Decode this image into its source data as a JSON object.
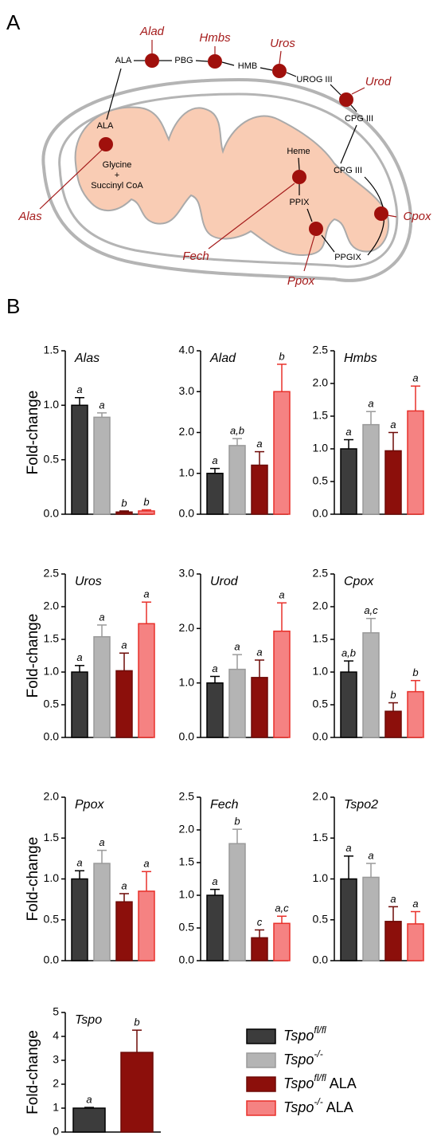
{
  "diagram": {
    "panel": "A",
    "genes": [
      "Alad",
      "Hmbs",
      "Uros",
      "Urod",
      "Alas",
      "Fech",
      "Ppox",
      "Cpox"
    ],
    "metabolites": [
      "ALA",
      "PBG",
      "HMB",
      "UROG III",
      "CPG III",
      "ALA",
      "Glycine",
      "+",
      "Succinyl CoA",
      "Heme",
      "PPIX",
      "CPG III",
      "PPGIX"
    ]
  },
  "panel_b": "B",
  "legend": [
    {
      "name": "Tspo",
      "superscript": "fl/fl",
      "color": "#3c3c3c",
      "edge": "#000000"
    },
    {
      "name": "Tspo",
      "superscript": "-/-",
      "color": "#b4b4b4",
      "edge": "#9a9a9a"
    },
    {
      "name": "Tspo",
      "superscript": "fl/fl",
      "suffix": "ALA",
      "color": "#8c0f0b",
      "edge": "#6e0a07"
    },
    {
      "name": "Tspo",
      "superscript": "-/-",
      "suffix": "ALA",
      "color": "#f58282",
      "edge": "#e8302a"
    }
  ],
  "chart_data": [
    {
      "type": "bar",
      "title": "Alas",
      "ylabel": "Fold-change",
      "values": [
        1.0,
        0.89,
        0.02,
        0.03
      ],
      "errors": [
        0.07,
        0.04,
        0.01,
        0.01
      ],
      "letters": [
        "a",
        "a",
        "b",
        "b"
      ],
      "colors": [
        "#3c3c3c",
        "#b4b4b4",
        "#8c0f0b",
        "#f58282"
      ],
      "edges": [
        "#000000",
        "#9a9a9a",
        "#6e0a07",
        "#e8302a"
      ],
      "ylim": [
        0,
        1.5
      ],
      "yticks": [
        {
          "value": 0,
          "label": "0.0"
        },
        0.5,
        {
          "value": 1,
          "label": "1.0"
        },
        1.5
      ]
    },
    {
      "type": "bar",
      "title": "Alad",
      "values": [
        1.0,
        1.68,
        1.2,
        3.0
      ],
      "errors": [
        0.12,
        0.17,
        0.33,
        0.67
      ],
      "letters": [
        "a",
        "a,b",
        "a",
        "b"
      ],
      "colors": [
        "#3c3c3c",
        "#b4b4b4",
        "#8c0f0b",
        "#f58282"
      ],
      "edges": [
        "#000000",
        "#9a9a9a",
        "#6e0a07",
        "#e8302a"
      ],
      "ylim": [
        0,
        4
      ],
      "yticks": [
        {
          "value": 0,
          "label": "0.0"
        },
        {
          "value": 1,
          "label": "1.0"
        },
        {
          "value": 2,
          "label": "2.0"
        },
        {
          "value": 3,
          "label": "3.0"
        },
        {
          "value": 4,
          "label": "4.0"
        }
      ]
    },
    {
      "type": "bar",
      "title": "Hmbs",
      "values": [
        1.0,
        1.37,
        0.97,
        1.58
      ],
      "errors": [
        0.14,
        0.2,
        0.28,
        0.38
      ],
      "letters": [
        "a",
        "a",
        "a",
        "a"
      ],
      "colors": [
        "#3c3c3c",
        "#b4b4b4",
        "#8c0f0b",
        "#f58282"
      ],
      "edges": [
        "#000000",
        "#9a9a9a",
        "#6e0a07",
        "#e8302a"
      ],
      "ylim": [
        0,
        2.5
      ],
      "yticks": [
        {
          "value": 0,
          "label": "0.0"
        },
        0.5,
        {
          "value": 1,
          "label": "1.0"
        },
        1.5,
        {
          "value": 2,
          "label": "2.0"
        },
        2.5
      ]
    },
    {
      "type": "bar",
      "title": "Uros",
      "ylabel": "Fold-change",
      "values": [
        1.0,
        1.54,
        1.02,
        1.74
      ],
      "errors": [
        0.1,
        0.18,
        0.27,
        0.33
      ],
      "letters": [
        "a",
        "a",
        "a",
        "a"
      ],
      "colors": [
        "#3c3c3c",
        "#b4b4b4",
        "#8c0f0b",
        "#f58282"
      ],
      "edges": [
        "#000000",
        "#9a9a9a",
        "#6e0a07",
        "#e8302a"
      ],
      "ylim": [
        0,
        2.5
      ],
      "yticks": [
        {
          "value": 0,
          "label": "0.0"
        },
        0.5,
        {
          "value": 1,
          "label": "1.0"
        },
        1.5,
        {
          "value": 2,
          "label": "2.0"
        },
        2.5
      ]
    },
    {
      "type": "bar",
      "title": "Urod",
      "values": [
        1.0,
        1.25,
        1.1,
        1.95
      ],
      "errors": [
        0.12,
        0.27,
        0.32,
        0.52
      ],
      "letters": [
        "a",
        "a",
        "a",
        "a"
      ],
      "colors": [
        "#3c3c3c",
        "#b4b4b4",
        "#8c0f0b",
        "#f58282"
      ],
      "edges": [
        "#000000",
        "#9a9a9a",
        "#6e0a07",
        "#e8302a"
      ],
      "ylim": [
        0,
        3
      ],
      "yticks": [
        {
          "value": 0,
          "label": "0.0"
        },
        {
          "value": 1,
          "label": "1.0"
        },
        {
          "value": 2,
          "label": "2.0"
        },
        {
          "value": 3,
          "label": "3.0"
        }
      ]
    },
    {
      "type": "bar",
      "title": "Cpox",
      "values": [
        1.0,
        1.6,
        0.4,
        0.7
      ],
      "errors": [
        0.17,
        0.22,
        0.13,
        0.17
      ],
      "letters": [
        "a,b",
        "a,c",
        "b",
        "b"
      ],
      "colors": [
        "#3c3c3c",
        "#b4b4b4",
        "#8c0f0b",
        "#f58282"
      ],
      "edges": [
        "#000000",
        "#9a9a9a",
        "#6e0a07",
        "#e8302a"
      ],
      "ylim": [
        0,
        2.5
      ],
      "yticks": [
        {
          "value": 0,
          "label": "0.0"
        },
        0.5,
        {
          "value": 1,
          "label": "1.0"
        },
        1.5,
        {
          "value": 2,
          "label": "2.0"
        },
        2.5
      ]
    },
    {
      "type": "bar",
      "title": "Ppox",
      "ylabel": "Fold-change",
      "values": [
        1.0,
        1.19,
        0.72,
        0.85
      ],
      "errors": [
        0.1,
        0.16,
        0.1,
        0.24
      ],
      "letters": [
        "a",
        "a",
        "a",
        "a"
      ],
      "colors": [
        "#3c3c3c",
        "#b4b4b4",
        "#8c0f0b",
        "#f58282"
      ],
      "edges": [
        "#000000",
        "#9a9a9a",
        "#6e0a07",
        "#e8302a"
      ],
      "ylim": [
        0,
        2
      ],
      "yticks": [
        {
          "value": 0,
          "label": "0.0"
        },
        0.5,
        {
          "value": 1,
          "label": "1.0"
        },
        1.5,
        {
          "value": 2,
          "label": "2.0"
        }
      ]
    },
    {
      "type": "bar",
      "title": "Fech",
      "values": [
        1.0,
        1.79,
        0.35,
        0.57
      ],
      "errors": [
        0.09,
        0.22,
        0.12,
        0.11
      ],
      "letters": [
        "a",
        "b",
        "c",
        "a,c"
      ],
      "colors": [
        "#3c3c3c",
        "#b4b4b4",
        "#8c0f0b",
        "#f58282"
      ],
      "edges": [
        "#000000",
        "#9a9a9a",
        "#6e0a07",
        "#e8302a"
      ],
      "ylim": [
        0,
        2.5
      ],
      "yticks": [
        {
          "value": 0,
          "label": "0.0"
        },
        0.5,
        {
          "value": 1,
          "label": "1.0"
        },
        1.5,
        {
          "value": 2,
          "label": "2.0"
        },
        2.5
      ]
    },
    {
      "type": "bar",
      "title": "Tspo2",
      "values": [
        1.0,
        1.02,
        0.48,
        0.45
      ],
      "errors": [
        0.28,
        0.17,
        0.18,
        0.15
      ],
      "letters": [
        "a",
        "a",
        "a",
        "a"
      ],
      "colors": [
        "#3c3c3c",
        "#b4b4b4",
        "#8c0f0b",
        "#f58282"
      ],
      "edges": [
        "#000000",
        "#9a9a9a",
        "#6e0a07",
        "#e8302a"
      ],
      "ylim": [
        0,
        2
      ],
      "yticks": [
        {
          "value": 0,
          "label": "0.0"
        },
        0.5,
        {
          "value": 1,
          "label": "1.0"
        },
        1.5,
        {
          "value": 2,
          "label": "2.0"
        }
      ]
    },
    {
      "type": "bar",
      "title": "Tspo",
      "ylabel": "Fold-change",
      "values": [
        1.0,
        3.33
      ],
      "errors": [
        0.03,
        0.93
      ],
      "letters": [
        "a",
        "b"
      ],
      "colors": [
        "#3c3c3c",
        "#8c0f0b"
      ],
      "edges": [
        "#000000",
        "#6e0a07"
      ],
      "ylim": [
        0,
        5
      ],
      "yticks": [
        0,
        1,
        2,
        3,
        4,
        5
      ]
    }
  ]
}
